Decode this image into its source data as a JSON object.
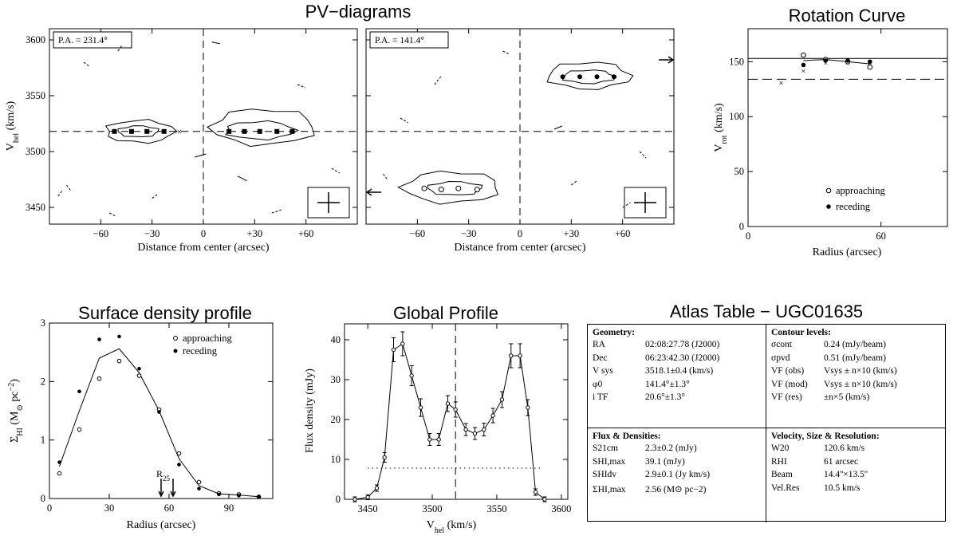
{
  "titles": {
    "pv": "PV−diagrams",
    "rc": "Rotation Curve",
    "sd": "Surface density profile",
    "gp": "Global Profile",
    "atlas": "Atlas Table − UGC01635"
  },
  "chart_data": [
    {
      "type": "contour",
      "title": "PV−diagrams",
      "panel": "left",
      "pa_label": "P.A. = 231.4°",
      "xlabel": "Distance from center (arcsec)",
      "ylabel": "V_hel (km/s)",
      "xlim": [
        -90,
        90
      ],
      "ylim": [
        3435,
        3610
      ],
      "xticks": [
        -60,
        -30,
        0,
        30,
        60
      ],
      "xtick_labels": [
        "−60",
        "−30",
        "0",
        "+30",
        "+60"
      ],
      "yticks": [
        3450,
        3500,
        3550,
        3600
      ],
      "vsys": 3518,
      "points": [
        {
          "x": -52,
          "y": 3518
        },
        {
          "x": -42,
          "y": 3518
        },
        {
          "x": -33,
          "y": 3518
        },
        {
          "x": -23,
          "y": 3518
        },
        {
          "x": 15,
          "y": 3518
        },
        {
          "x": 24,
          "y": 3518
        },
        {
          "x": 33,
          "y": 3518
        },
        {
          "x": 43,
          "y": 3518
        },
        {
          "x": 52,
          "y": 3518
        }
      ],
      "center_x": [
        {
          "x": -14,
          "y": 3518
        }
      ]
    },
    {
      "type": "contour",
      "panel": "right",
      "pa_label": "P.A. = 141.4°",
      "xlabel": "Distance from center (arcsec)",
      "xlim": [
        -90,
        90
      ],
      "ylim": [
        3435,
        3610
      ],
      "xticks": [
        -60,
        -30,
        0,
        30,
        60
      ],
      "xtick_labels": [
        "−60",
        "−30",
        "0",
        "+30",
        "+60"
      ],
      "points": [
        {
          "x": 25,
          "y": 3567
        },
        {
          "x": 35,
          "y": 3567
        },
        {
          "x": 45,
          "y": 3567
        },
        {
          "x": 55,
          "y": 3567
        }
      ],
      "open_points": [
        {
          "x": -56,
          "y": 3467
        },
        {
          "x": -46,
          "y": 3466
        },
        {
          "x": -36,
          "y": 3467
        },
        {
          "x": -25,
          "y": 3466
        }
      ]
    },
    {
      "type": "scatter",
      "title": "Rotation Curve",
      "xlabel": "Radius (arcsec)",
      "ylabel": "V_rot (km/s)",
      "xlim": [
        0,
        90
      ],
      "ylim": [
        0,
        180
      ],
      "xticks": [
        0,
        60
      ],
      "yticks": [
        0,
        50,
        100,
        150
      ],
      "vmax_line": 153,
      "dashed_line": 134,
      "series": [
        {
          "name": "approaching",
          "x": [
            25,
            35,
            45,
            55
          ],
          "y": [
            156,
            152,
            150,
            145
          ]
        },
        {
          "name": "receding",
          "x": [
            25,
            35,
            45,
            55
          ],
          "y": [
            147,
            151,
            151,
            150
          ]
        }
      ],
      "model_line": {
        "x": [
          25,
          35,
          45,
          55
        ],
        "y": [
          151,
          152,
          150,
          148
        ]
      },
      "crosses": {
        "x": [
          15,
          25,
          35,
          45,
          55
        ],
        "y": [
          131,
          142,
          149,
          149,
          147
        ]
      }
    },
    {
      "type": "line",
      "title": "Surface density profile",
      "xlabel": "Radius (arcsec)",
      "ylabel": "Σ_HI (M⊙ pc^−2)",
      "xlim": [
        0,
        112
      ],
      "ylim": [
        0,
        3
      ],
      "xticks": [
        0,
        30,
        60,
        90
      ],
      "yticks": [
        0,
        1,
        2,
        3
      ],
      "annotation": "R25",
      "r25_arrows": [
        56,
        62
      ],
      "series": [
        {
          "name": "approaching",
          "x": [
            5,
            15,
            25,
            35,
            45,
            55,
            65,
            75,
            85,
            95,
            105
          ],
          "y": [
            0.43,
            1.18,
            2.05,
            2.35,
            2.1,
            1.52,
            0.77,
            0.28,
            0.09,
            0.07,
            0.03
          ]
        },
        {
          "name": "receding",
          "x": [
            5,
            15,
            25,
            35,
            45,
            55,
            65,
            75,
            85,
            95,
            105
          ],
          "y": [
            0.62,
            1.83,
            2.72,
            2.77,
            2.22,
            1.48,
            0.58,
            0.17,
            0.07,
            0.05,
            0.03
          ]
        }
      ],
      "model": {
        "x": [
          5,
          15,
          25,
          35,
          45,
          55,
          65,
          75,
          85,
          95,
          105
        ],
        "y": [
          0.55,
          1.5,
          2.4,
          2.56,
          2.15,
          1.5,
          0.68,
          0.22,
          0.08,
          0.06,
          0.03
        ]
      }
    },
    {
      "type": "line",
      "title": "Global Profile",
      "xlabel": "V_hel (km/s)",
      "ylabel": "Flux density (mJy)",
      "xlim": [
        3432,
        3605
      ],
      "ylim": [
        0,
        44
      ],
      "xticks": [
        3450,
        3500,
        3550,
        3600
      ],
      "yticks": [
        0,
        10,
        20,
        30,
        40
      ],
      "vsys": 3518,
      "dotted_level": 7.8,
      "x": [
        3440,
        3450,
        3457,
        3463,
        3470,
        3477,
        3484,
        3491,
        3498,
        3505,
        3512,
        3518,
        3526,
        3533,
        3540,
        3547,
        3554,
        3561,
        3568,
        3574,
        3580,
        3587
      ],
      "y": [
        0,
        0.5,
        2.8,
        10.5,
        37.5,
        39,
        31,
        23,
        15,
        15,
        24,
        22.5,
        17.5,
        16.5,
        17.5,
        21,
        25,
        36,
        36,
        23,
        1.8,
        0
      ],
      "err": [
        0.6,
        0.6,
        0.8,
        1.2,
        3,
        3,
        2.5,
        2.2,
        1.5,
        1.5,
        2,
        1.9,
        1.5,
        1.5,
        1.6,
        1.8,
        2,
        3,
        3,
        2,
        0.8,
        0.6
      ]
    }
  ],
  "atlas": {
    "geometry": {
      "heading": "Geometry:",
      "rows": [
        {
          "k": "RA",
          "v": "02:08:27.78 (J2000)"
        },
        {
          "k": "Dec",
          "v": "06:23:42.30 (J2000)"
        },
        {
          "k": "V sys",
          "v": "3518.1±0.4 (km/s)"
        },
        {
          "k": "φ0",
          "v": "141.4°±1.3°"
        },
        {
          "k": "i TF",
          "v": "20.6°±1.3°"
        }
      ]
    },
    "contours": {
      "heading": "Contour levels:",
      "rows": [
        {
          "k": "σcont",
          "v": "0.24 (mJy/beam)"
        },
        {
          "k": "σpvd",
          "v": "0.51 (mJy/beam)"
        },
        {
          "k": "VF (obs)",
          "v": "Vsys ± n×10 (km/s)"
        },
        {
          "k": "VF (mod)",
          "v": "Vsys ± n×10 (km/s)"
        },
        {
          "k": "VF (res)",
          "v": "±n×5 (km/s)"
        }
      ]
    },
    "flux": {
      "heading": "Flux & Densities:",
      "rows": [
        {
          "k": "S21cm",
          "v": "2.3±0.2 (mJy)"
        },
        {
          "k": "SHI,max",
          "v": "39.1 (mJy)"
        },
        {
          "k": "SHIdv",
          "v": "2.9±0.1 (Jy km/s)"
        },
        {
          "k": "ΣHI,max",
          "v": "2.56 (M⊙ pc−2)"
        }
      ]
    },
    "velocity": {
      "heading": "Velocity, Size & Resolution:",
      "rows": [
        {
          "k": "W20",
          "v": "120.6 km/s"
        },
        {
          "k": "RHI",
          "v": "61 arcsec"
        },
        {
          "k": "Beam",
          "v": "14.4''×13.5''"
        },
        {
          "k": "Vel.Res",
          "v": "10.5 km/s"
        }
      ]
    }
  }
}
